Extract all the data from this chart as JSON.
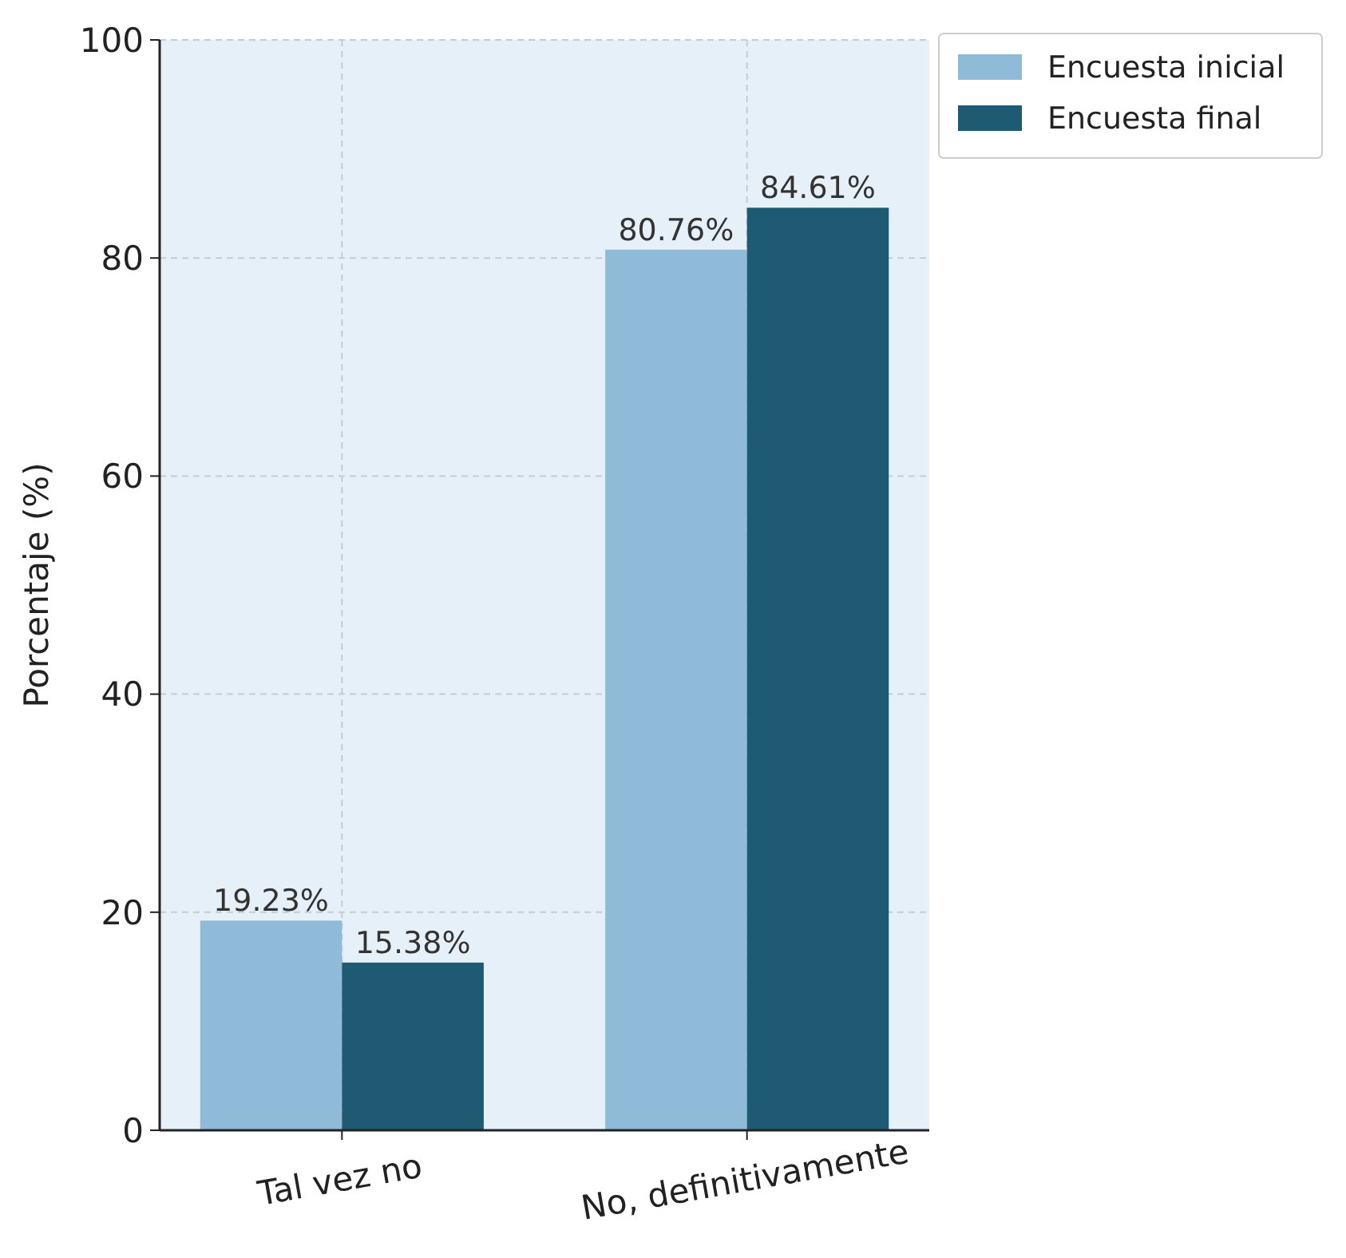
{
  "chart_data": {
    "type": "bar",
    "ylabel": "Porcentaje (%)",
    "categories": [
      "Tal vez no",
      "No, definitivamente"
    ],
    "series": [
      {
        "name": "Encuesta inicial",
        "color": "#8fbbd9",
        "values": [
          19.23,
          80.76
        ],
        "value_labels": [
          "19.23%",
          "80.76%"
        ]
      },
      {
        "name": "Encuesta final",
        "color": "#1f5a73",
        "values": [
          15.38,
          84.61
        ],
        "value_labels": [
          "15.38%",
          "84.61%"
        ]
      }
    ],
    "ylim": [
      0,
      100
    ],
    "yticks": [
      0,
      20,
      40,
      60,
      80,
      100
    ],
    "grid": true,
    "legend": "top right"
  }
}
